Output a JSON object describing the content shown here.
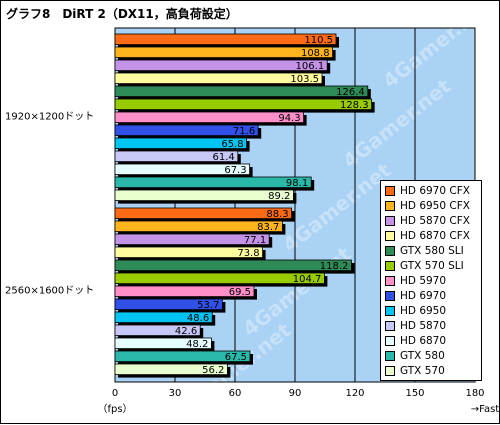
{
  "title": "グラフ8　DiRT 2（DX11，高負荷設定）",
  "x_unit": "（fps）",
  "x_direction": "→Fast",
  "watermark": "4Gamer.net",
  "colors": {
    "plot_bg": "#a9d2f4",
    "HD 6970 CFX": "#ff6a14",
    "HD 6950 CFX": "#ffb41e",
    "HD 5870 CFX": "#c493e8",
    "HD 6870 CFX": "#fffca0",
    "GTX 580 SLI": "#2e8b57",
    "GTX 570 SLI": "#99cc00",
    "HD 5970": "#ff8fc8",
    "HD 6970": "#3050e8",
    "HD 6950": "#00c4f2",
    "HD 5870": "#c8c8f8",
    "HD 6870": "#e6ffff",
    "GTX 580": "#2ab8a8",
    "GTX 570": "#eaffd0"
  },
  "chart_data": {
    "type": "bar",
    "orientation": "horizontal",
    "title": "グラフ8　DiRT 2（DX11，高負荷設定）",
    "xlabel": "（fps）",
    "xlim": [
      0,
      180
    ],
    "x_ticks": [
      0,
      30,
      60,
      90,
      120,
      150,
      180
    ],
    "grid": true,
    "legend_position": "right",
    "groups": [
      "1920×1200ドット",
      "2560×1600ドット"
    ],
    "series": [
      {
        "name": "HD 6970 CFX",
        "values": [
          110.5,
          88.3
        ]
      },
      {
        "name": "HD 6950 CFX",
        "values": [
          108.8,
          83.7
        ]
      },
      {
        "name": "HD 5870 CFX",
        "values": [
          106.1,
          77.1
        ]
      },
      {
        "name": "HD 6870 CFX",
        "values": [
          103.5,
          73.8
        ]
      },
      {
        "name": "GTX 580 SLI",
        "values": [
          126.4,
          118.2
        ]
      },
      {
        "name": "GTX 570 SLI",
        "values": [
          128.3,
          104.7
        ]
      },
      {
        "name": "HD 5970",
        "values": [
          94.3,
          69.5
        ]
      },
      {
        "name": "HD 6970",
        "values": [
          71.6,
          53.7
        ]
      },
      {
        "name": "HD 6950",
        "values": [
          65.8,
          48.6
        ]
      },
      {
        "name": "HD 5870",
        "values": [
          61.4,
          42.6
        ]
      },
      {
        "name": "HD 6870",
        "values": [
          67.3,
          48.2
        ]
      },
      {
        "name": "GTX 580",
        "values": [
          98.1,
          67.5
        ]
      },
      {
        "name": "GTX 570",
        "values": [
          89.2,
          56.2
        ]
      }
    ]
  }
}
